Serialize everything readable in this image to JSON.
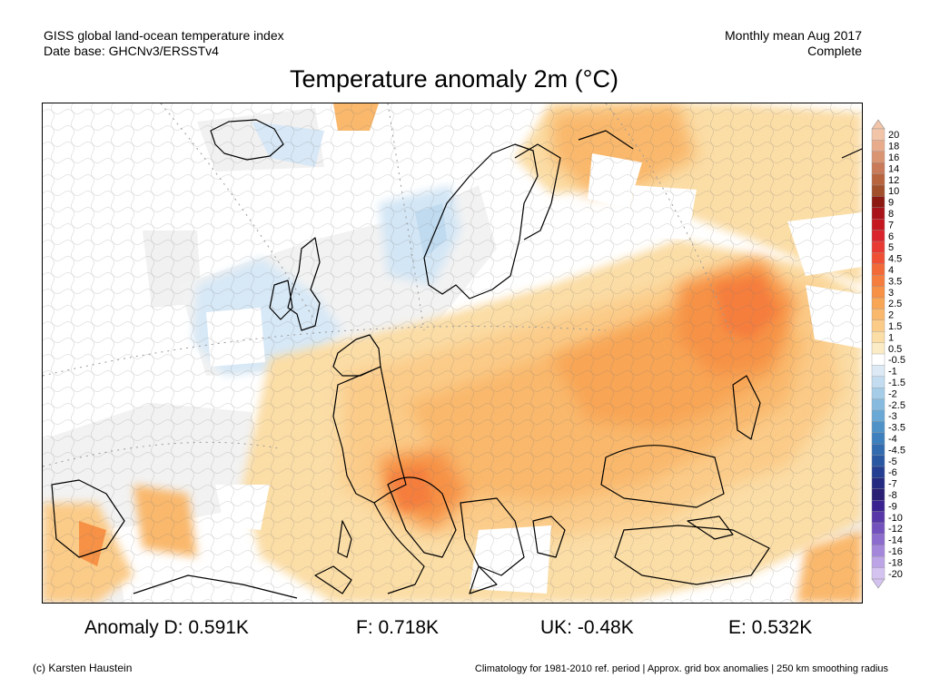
{
  "header": {
    "line1_left": "GISS global land-ocean temperature index",
    "line2_left": "Date base: GHCNv3/ERSSTv4",
    "line1_right": "Monthly mean Aug 2017",
    "line2_right": "Complete"
  },
  "title": "Temperature anomaly 2m (°C)",
  "legend": {
    "labels": [
      "20",
      "18",
      "16",
      "14",
      "12",
      "10",
      "9",
      "8",
      "7",
      "6",
      "5",
      "4.5",
      "4",
      "3.5",
      "3",
      "2.5",
      "2",
      "1.5",
      "1",
      "0.5",
      "-0.5",
      "-1",
      "-1.5",
      "-2",
      "-2.5",
      "-3",
      "-3.5",
      "-4",
      "-4.5",
      "-5",
      "-6",
      "-7",
      "-8",
      "-9",
      "-10",
      "-12",
      "-14",
      "-16",
      "-18",
      "-20"
    ],
    "colors": [
      "#f2c4a8",
      "#e8ac8c",
      "#d99472",
      "#c97a58",
      "#b8653f",
      "#a24f2c",
      "#8c1a12",
      "#a8141a",
      "#c4171f",
      "#d8242a",
      "#e83a33",
      "#ef5033",
      "#f26a38",
      "#f57e3e",
      "#f69145",
      "#f8a555",
      "#f9b86c",
      "#fbcb88",
      "#fbdda6",
      "#fcecc5",
      "#ffffff",
      "#ddeaf6",
      "#c3dcf0",
      "#a6cde8",
      "#86bbdf",
      "#6aa8d5",
      "#4f92c8",
      "#3e7fbd",
      "#336bb0",
      "#2a57a2",
      "#243e92",
      "#232a80",
      "#2a1f75",
      "#3a2390",
      "#5838a8",
      "#7452bd",
      "#8c6ccd",
      "#a487db",
      "#bca4e6",
      "#d4c3f0"
    ],
    "min_label": "-20",
    "max_label": "20"
  },
  "anomalies": {
    "d": "Anomaly D: 0.591K",
    "f": "F: 0.718K",
    "uk": "UK: -0.48K",
    "e": "E: 0.532K"
  },
  "footer": {
    "left": "(c) Karsten Haustein",
    "right": "Climatology for 1981-2010 ref. period | Approx. grid box anomalies | 250 km smoothing radius"
  }
}
